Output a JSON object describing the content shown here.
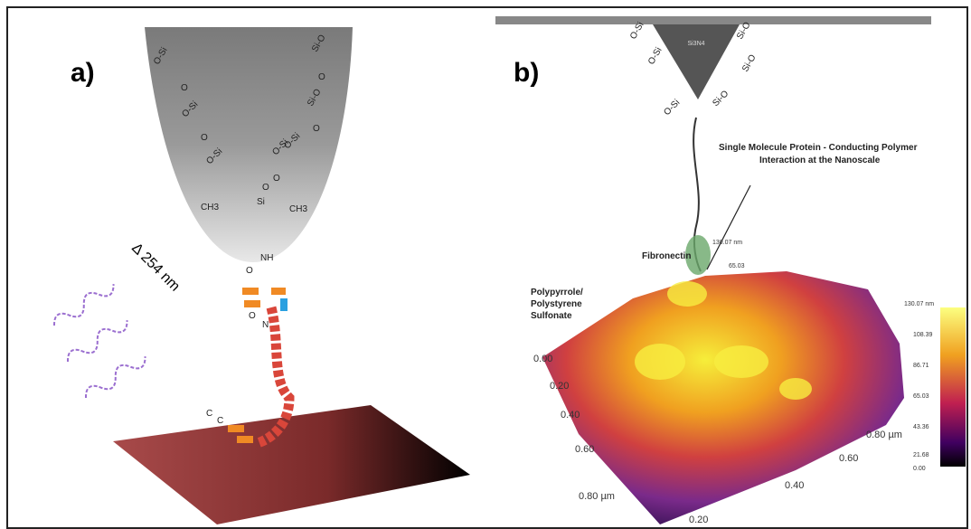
{
  "panel_a": {
    "label": "a)",
    "wavelength": "Δ 254 nm",
    "chem": [
      "O-Si",
      "O",
      "O-Si",
      "O",
      "O-Si",
      "O-Si",
      "Si-O",
      "O",
      "Si-O",
      "O",
      "O-Si",
      "O",
      "O",
      "CH3",
      "Si",
      "CH3",
      "NH",
      "O",
      "O",
      "N",
      "C",
      "C"
    ]
  },
  "panel_b": {
    "label": "b)",
    "tip_material": "Si3N4",
    "chem": [
      "O-Si",
      "Si-O",
      "O-Si",
      "Si-O",
      "O-Si",
      "Si-O"
    ],
    "caption_line1": "Single Molecule Protein  - Conducting Polymer",
    "caption_line2": "Interaction at the Nanoscale",
    "protein": "Fibronectin",
    "substrate": [
      "Polypyrrole/",
      "Polystyrene",
      "Sulfonate"
    ],
    "height_top": "130.07 nm",
    "height_mid": "65.03",
    "y_axis": [
      "0.00",
      "0.20",
      "0.40",
      "0.60",
      "0.80 µm"
    ],
    "x_axis": [
      "0.20",
      "0.40",
      "0.60",
      "0.80 µm"
    ],
    "colorbar": [
      "130.07 nm",
      "108.39",
      "86.71",
      "65.03",
      "43.36",
      "21.68",
      "0.00"
    ]
  }
}
